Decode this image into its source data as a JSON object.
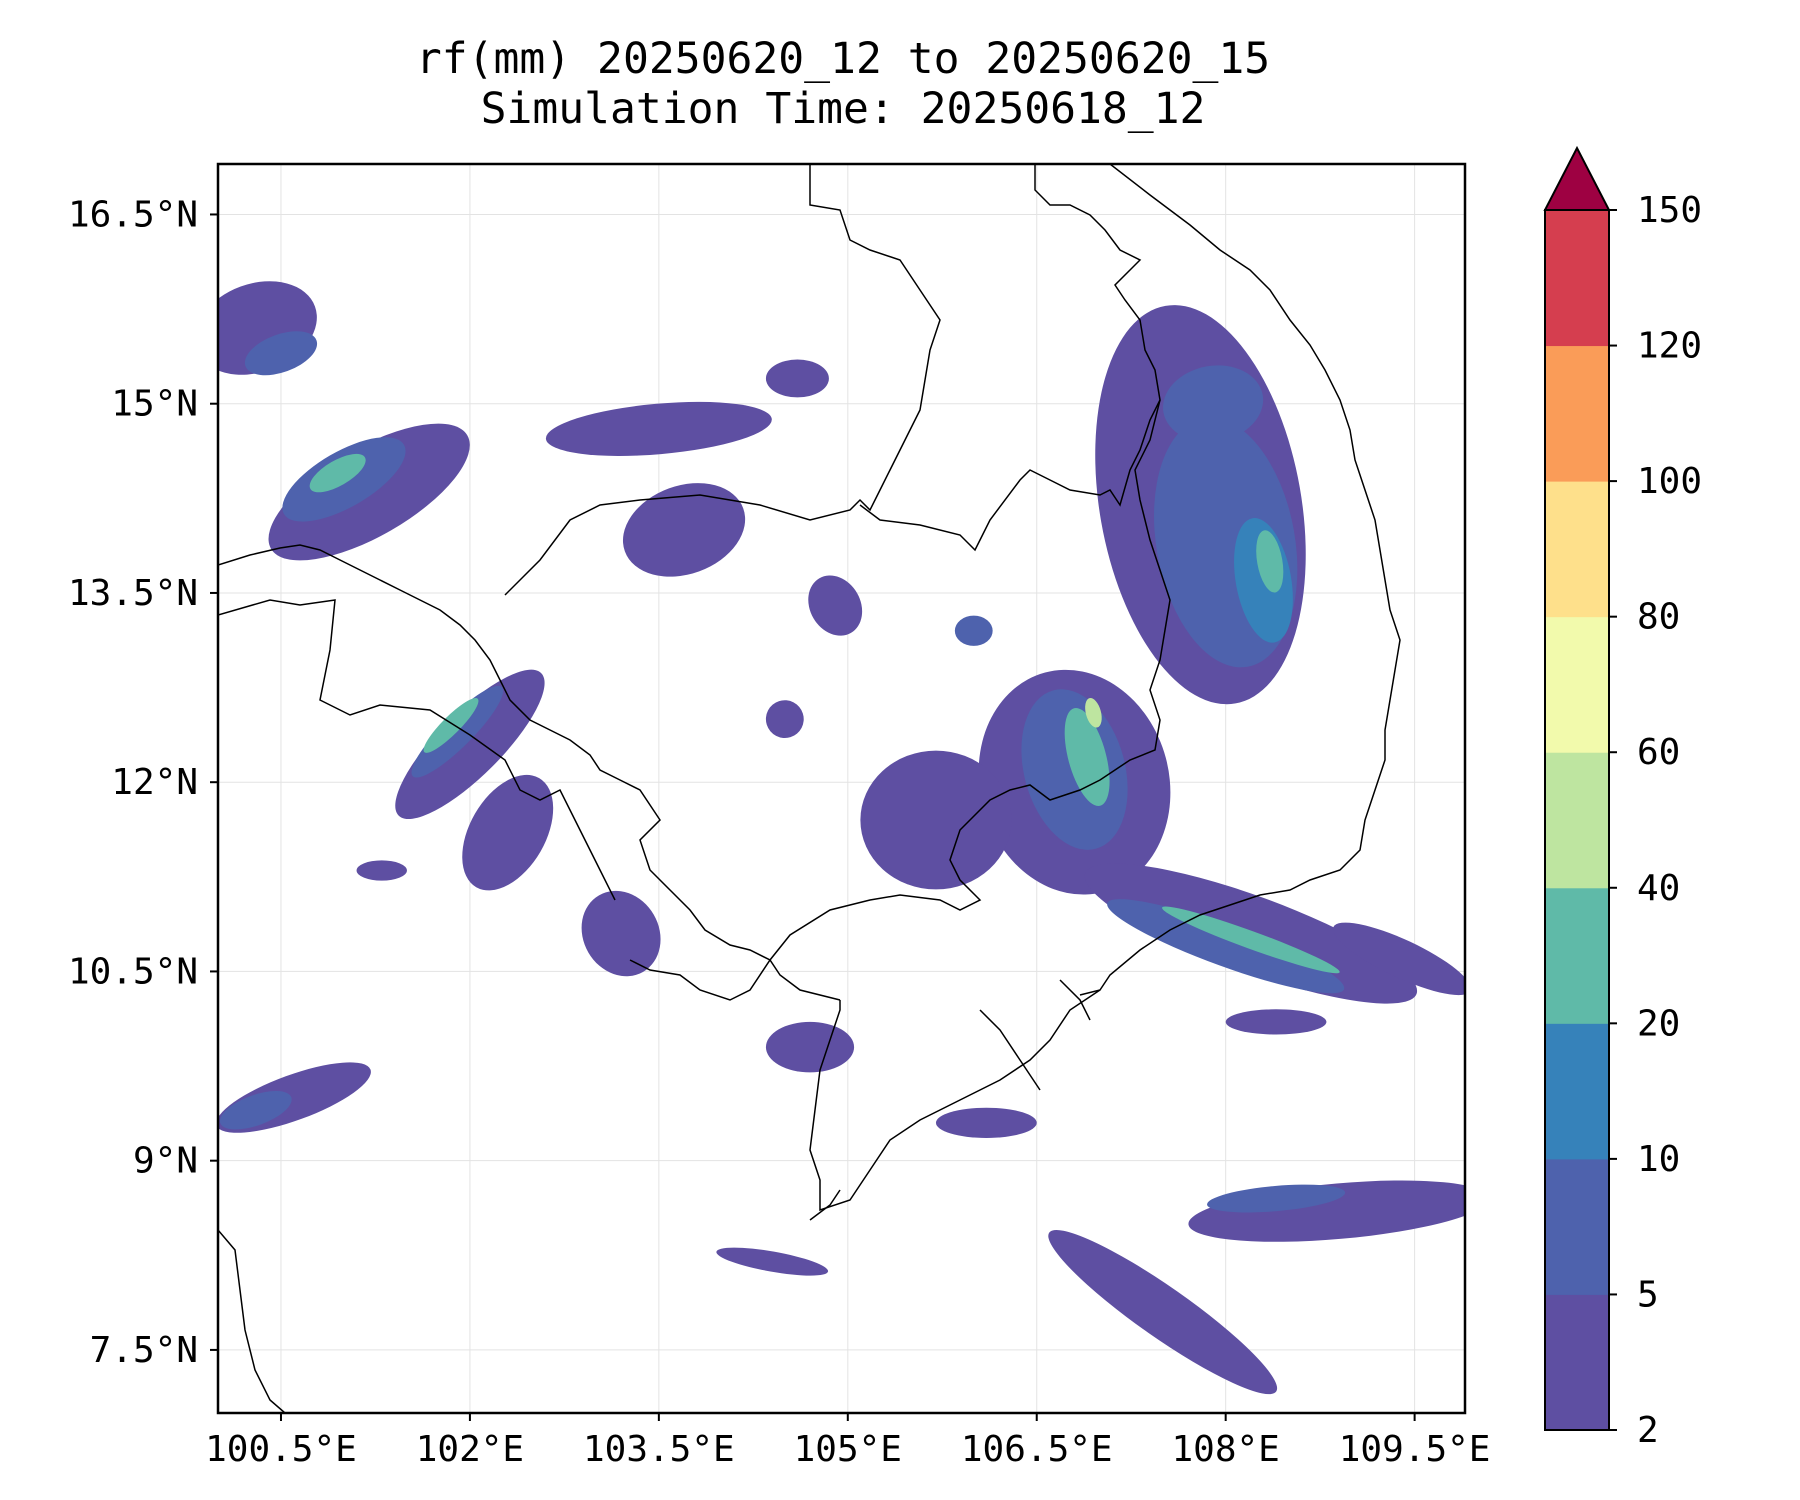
{
  "title": {
    "line1": "rf(mm) 20250620_12 to 20250620_15",
    "line2": "Simulation Time: 20250618_12"
  },
  "map": {
    "extent": {
      "lon_min": 100.0,
      "lon_max": 109.9,
      "lat_min": 7.0,
      "lat_max": 16.9
    },
    "x_ticks": [
      {
        "value": 100.5,
        "label": "100.5°E"
      },
      {
        "value": 102.0,
        "label": "102°E"
      },
      {
        "value": 103.5,
        "label": "103.5°E"
      },
      {
        "value": 105.0,
        "label": "105°E"
      },
      {
        "value": 106.5,
        "label": "106.5°E"
      },
      {
        "value": 108.0,
        "label": "108°E"
      },
      {
        "value": 109.5,
        "label": "109.5°E"
      }
    ],
    "y_ticks": [
      {
        "value": 16.5,
        "label": "16.5°N"
      },
      {
        "value": 15.0,
        "label": "15°N"
      },
      {
        "value": 13.5,
        "label": "13.5°N"
      },
      {
        "value": 12.0,
        "label": "12°N"
      },
      {
        "value": 10.5,
        "label": "10.5°N"
      },
      {
        "value": 9.0,
        "label": "9°N"
      },
      {
        "value": 7.5,
        "label": "7.5°N"
      }
    ],
    "gridlines": true
  },
  "colorbar": {
    "levels": [
      "2",
      "5",
      "10",
      "20",
      "40",
      "60",
      "80",
      "100",
      "120",
      "150"
    ],
    "colors": [
      "#5e4fa2",
      "#4e62ad",
      "#3682ba",
      "#5fbaa8",
      "#bee5a0",
      "#f2faac",
      "#fee08b",
      "#fa9c58",
      "#d53e4f"
    ],
    "extend_max_color": "#9e0142"
  },
  "chart_data": {
    "type": "heatmap",
    "variable": "rf(mm)",
    "levels_mm": [
      2,
      5,
      10,
      20,
      40,
      60,
      80,
      100,
      120,
      150
    ],
    "rain_regions": [
      {
        "lon": 101.2,
        "lat": 14.3,
        "rx": 0.9,
        "ry": 0.35,
        "rot": 30,
        "level": 0
      },
      {
        "lon": 101.0,
        "lat": 14.4,
        "rx": 0.55,
        "ry": 0.22,
        "rot": 30,
        "level": 1
      },
      {
        "lon": 100.95,
        "lat": 14.45,
        "rx": 0.25,
        "ry": 0.1,
        "rot": 30,
        "level": 3
      },
      {
        "lon": 100.3,
        "lat": 15.6,
        "rx": 0.5,
        "ry": 0.35,
        "rot": 20,
        "level": 0
      },
      {
        "lon": 100.5,
        "lat": 15.4,
        "rx": 0.3,
        "ry": 0.15,
        "rot": 20,
        "level": 1
      },
      {
        "lon": 102.0,
        "lat": 12.3,
        "rx": 0.8,
        "ry": 0.25,
        "rot": 45,
        "level": 0
      },
      {
        "lon": 101.9,
        "lat": 12.4,
        "rx": 0.5,
        "ry": 0.12,
        "rot": 45,
        "level": 1
      },
      {
        "lon": 101.85,
        "lat": 12.45,
        "rx": 0.3,
        "ry": 0.07,
        "rot": 45,
        "level": 3
      },
      {
        "lon": 102.3,
        "lat": 11.6,
        "rx": 0.5,
        "ry": 0.3,
        "rot": 60,
        "level": 0
      },
      {
        "lon": 100.6,
        "lat": 9.5,
        "rx": 0.65,
        "ry": 0.18,
        "rot": 20,
        "level": 0
      },
      {
        "lon": 100.3,
        "lat": 9.4,
        "rx": 0.3,
        "ry": 0.12,
        "rot": 20,
        "level": 1
      },
      {
        "lon": 103.5,
        "lat": 14.8,
        "rx": 0.9,
        "ry": 0.2,
        "rot": 5,
        "level": 0
      },
      {
        "lon": 103.7,
        "lat": 14.0,
        "rx": 0.5,
        "ry": 0.35,
        "rot": 20,
        "level": 0
      },
      {
        "lon": 107.8,
        "lat": 14.2,
        "rx": 0.8,
        "ry": 1.6,
        "rot": 10,
        "level": 0
      },
      {
        "lon": 108.0,
        "lat": 13.9,
        "rx": 0.55,
        "ry": 1.0,
        "rot": 10,
        "level": 1
      },
      {
        "lon": 107.9,
        "lat": 15.0,
        "rx": 0.4,
        "ry": 0.3,
        "rot": 10,
        "level": 1
      },
      {
        "lon": 108.3,
        "lat": 13.6,
        "rx": 0.22,
        "ry": 0.5,
        "rot": 10,
        "level": 2
      },
      {
        "lon": 108.35,
        "lat": 13.75,
        "rx": 0.1,
        "ry": 0.25,
        "rot": 10,
        "level": 3
      },
      {
        "lon": 106.8,
        "lat": 12.0,
        "rx": 0.75,
        "ry": 0.9,
        "rot": 15,
        "level": 0
      },
      {
        "lon": 106.8,
        "lat": 12.1,
        "rx": 0.4,
        "ry": 0.65,
        "rot": 15,
        "level": 1
      },
      {
        "lon": 106.9,
        "lat": 12.2,
        "rx": 0.15,
        "ry": 0.4,
        "rot": 15,
        "level": 3
      },
      {
        "lon": 106.95,
        "lat": 12.55,
        "rx": 0.06,
        "ry": 0.12,
        "rot": 15,
        "level": 4
      },
      {
        "lon": 105.7,
        "lat": 11.7,
        "rx": 0.6,
        "ry": 0.55,
        "rot": 0,
        "level": 0
      },
      {
        "lon": 108.2,
        "lat": 10.8,
        "rx": 1.4,
        "ry": 0.3,
        "rot": -20,
        "level": 0
      },
      {
        "lon": 108.0,
        "lat": 10.7,
        "rx": 1.0,
        "ry": 0.16,
        "rot": -20,
        "level": 1
      },
      {
        "lon": 108.2,
        "lat": 10.75,
        "rx": 0.75,
        "ry": 0.07,
        "rot": -20,
        "level": 3
      },
      {
        "lon": 109.4,
        "lat": 10.6,
        "rx": 0.6,
        "ry": 0.15,
        "rot": -25,
        "level": 0
      },
      {
        "lon": 108.4,
        "lat": 10.1,
        "rx": 0.4,
        "ry": 0.1,
        "rot": 0,
        "level": 0
      },
      {
        "lon": 108.9,
        "lat": 8.6,
        "rx": 1.2,
        "ry": 0.22,
        "rot": 5,
        "level": 0
      },
      {
        "lon": 108.4,
        "lat": 8.7,
        "rx": 0.55,
        "ry": 0.1,
        "rot": 5,
        "level": 1
      },
      {
        "lon": 107.5,
        "lat": 7.8,
        "rx": 1.1,
        "ry": 0.2,
        "rot": -35,
        "level": 0
      },
      {
        "lon": 104.7,
        "lat": 9.9,
        "rx": 0.35,
        "ry": 0.2,
        "rot": 0,
        "level": 0
      },
      {
        "lon": 106.1,
        "lat": 9.3,
        "rx": 0.4,
        "ry": 0.12,
        "rot": 0,
        "level": 0
      },
      {
        "lon": 104.4,
        "lat": 8.2,
        "rx": 0.45,
        "ry": 0.08,
        "rot": -10,
        "level": 0
      },
      {
        "lon": 101.3,
        "lat": 11.3,
        "rx": 0.2,
        "ry": 0.08,
        "rot": 0,
        "level": 0
      },
      {
        "lon": 104.5,
        "lat": 12.5,
        "rx": 0.15,
        "ry": 0.15,
        "rot": 40,
        "level": 0
      },
      {
        "lon": 106.0,
        "lat": 13.2,
        "rx": 0.15,
        "ry": 0.12,
        "rot": 0,
        "level": 1
      },
      {
        "lon": 104.9,
        "lat": 13.4,
        "rx": 0.2,
        "ry": 0.25,
        "rot": 30,
        "level": 0
      },
      {
        "lon": 103.2,
        "lat": 10.8,
        "rx": 0.3,
        "ry": 0.35,
        "rot": 30,
        "level": 0
      },
      {
        "lon": 104.6,
        "lat": 15.2,
        "rx": 0.25,
        "ry": 0.15,
        "rot": 0,
        "level": 0
      }
    ]
  }
}
